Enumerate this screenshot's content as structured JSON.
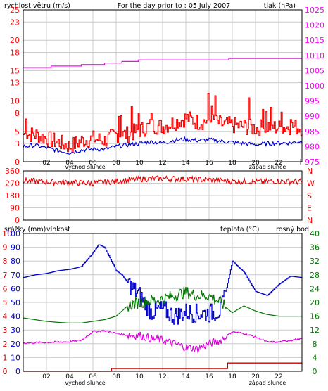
{
  "colors": {
    "wind": "#ff0000",
    "pressure": "#ff00ff",
    "speed_avg": "#0000cc",
    "direction": "#e60000",
    "humidity": "#0000cc",
    "temperature": "#007700",
    "dewpoint": "#dd00dd",
    "rain": "#cc0000",
    "grid": "#cccccc",
    "frame": "#000000"
  },
  "chart_data": [
    {
      "type": "line",
      "title": "For the day prior to : 05 July 2007",
      "ylabel": "rychlost větru (m/s)",
      "y2label": "tlak (hPa)",
      "ylim": [
        0,
        25
      ],
      "y2lim": [
        975,
        1025
      ],
      "yticks": [
        "0",
        "3",
        "5",
        "8",
        "10",
        "13",
        "15",
        "18",
        "20",
        "23",
        "25"
      ],
      "y2ticks": [
        "975",
        "980",
        "985",
        "990",
        "995",
        "1000",
        "1005",
        "1010",
        "1015",
        "1020",
        "1025"
      ],
      "xticks": [
        "02",
        "04",
        "06",
        "08",
        "10",
        "12",
        "14",
        "16",
        "18",
        "20",
        "22"
      ],
      "x_notes": {
        "sunrise": "východ slunce",
        "sunset": "západ slunce"
      },
      "grid": true,
      "series": [
        {
          "key": "wind_gust",
          "x": [
            0,
            1,
            2,
            3,
            4,
            5,
            6,
            7,
            8,
            9,
            10,
            11,
            12,
            13,
            14,
            15,
            16,
            17,
            18,
            19,
            20,
            21,
            22,
            23,
            24
          ],
          "values": [
            4.5,
            4.5,
            3.8,
            3.2,
            2.5,
            3.5,
            3.8,
            3.5,
            4.5,
            4.5,
            5.2,
            6,
            5.8,
            6.5,
            7.2,
            6.5,
            6.8,
            6.2,
            6,
            5.8,
            5.5,
            5.8,
            5.6,
            5.8,
            5.6
          ]
        },
        {
          "key": "wind_avg",
          "x": [
            0,
            1,
            2,
            3,
            4,
            5,
            6,
            7,
            8,
            9,
            10,
            11,
            12,
            13,
            14,
            15,
            16,
            17,
            18,
            19,
            20,
            21,
            22,
            23,
            24
          ],
          "values": [
            2.5,
            2.7,
            2.3,
            1.8,
            1.5,
            1.9,
            2.1,
            2,
            2.5,
            2.8,
            3,
            3.3,
            3.1,
            3.5,
            3.7,
            3.5,
            3.6,
            3.4,
            3.2,
            3,
            2.8,
            3,
            3.1,
            3.1,
            3.4
          ]
        },
        {
          "key": "pressure",
          "axis": "right",
          "x": [
            0,
            2,
            4,
            6,
            8,
            9,
            10,
            12,
            14,
            16,
            18,
            20,
            22,
            24
          ],
          "values": [
            1006,
            1006.2,
            1006.5,
            1007,
            1007.5,
            1008,
            1008.3,
            1008.5,
            1008.5,
            1008.5,
            1008.8,
            1009,
            1009,
            1009
          ]
        }
      ]
    },
    {
      "type": "line",
      "yticks": [
        "360",
        "270",
        "180",
        "90",
        "0"
      ],
      "y2ticks": [
        "N",
        "W",
        "S",
        "E",
        "N"
      ],
      "ylim": [
        0,
        360
      ],
      "grid": true,
      "series": [
        {
          "key": "wind_direction",
          "x": [
            0,
            2,
            4,
            6,
            8,
            10,
            12,
            14,
            16,
            18,
            20,
            22,
            24
          ],
          "values": [
            290,
            280,
            275,
            270,
            285,
            300,
            305,
            300,
            295,
            285,
            280,
            285,
            280
          ]
        }
      ]
    },
    {
      "type": "line",
      "labels": {
        "rain": "srážky (mm)",
        "humidity": "vlhkost",
        "temperature": "teplota (°C)",
        "dewpoint": "rosný bod"
      },
      "rain_ticks": [
        "0",
        "1",
        "2",
        "3",
        "4",
        "5",
        "6",
        "7",
        "8",
        "9",
        "10"
      ],
      "humidity_ticks": [
        "0",
        "10",
        "20",
        "30",
        "40",
        "50",
        "60",
        "70",
        "80",
        "90",
        "100"
      ],
      "temp_ticks": [
        "0",
        "4",
        "8",
        "12",
        "16",
        "20",
        "24",
        "28",
        "32",
        "36",
        "40"
      ],
      "ylim_rain": [
        0,
        10
      ],
      "ylim_humidity": [
        0,
        100
      ],
      "ylim_temp": [
        0,
        40
      ],
      "xticks": [
        "02",
        "04",
        "06",
        "08",
        "10",
        "12",
        "14",
        "16",
        "18",
        "20",
        "22"
      ],
      "x_notes": {
        "sunrise": "východ slunce",
        "sunset": "západ slunce"
      },
      "grid": true,
      "series": [
        {
          "key": "humidity",
          "x": [
            0,
            1,
            2,
            3,
            4,
            5,
            6,
            6.5,
            7,
            8,
            8.5,
            9,
            10,
            11,
            12,
            13,
            14,
            15,
            16,
            17,
            17.5,
            18,
            19,
            20,
            21,
            22,
            23,
            24
          ],
          "values": [
            68,
            70,
            71,
            73,
            74,
            76,
            86,
            92,
            90,
            73,
            70,
            64,
            55,
            43,
            45,
            40,
            43,
            42,
            42,
            44,
            60,
            80,
            72,
            58,
            55,
            63,
            69,
            68
          ]
        },
        {
          "key": "temperature",
          "axis": "temp",
          "x": [
            0,
            1,
            2,
            3,
            4,
            5,
            6,
            7,
            8,
            9,
            10,
            11,
            12,
            13,
            14,
            15,
            16,
            17,
            18,
            19,
            20,
            21,
            22,
            23,
            24
          ],
          "values": [
            15.5,
            15,
            14.5,
            14.2,
            14,
            14,
            14.5,
            15,
            16,
            19,
            20,
            20.5,
            21,
            22,
            23,
            22,
            22,
            20,
            17,
            19,
            17.5,
            16.5,
            16,
            16,
            16
          ]
        },
        {
          "key": "dewpoint",
          "axis": "temp",
          "x": [
            0,
            1,
            2,
            3,
            4,
            5,
            6,
            7,
            8,
            9,
            10,
            11,
            12,
            13,
            14,
            15,
            16,
            17,
            18,
            19,
            20,
            21,
            22,
            23,
            24
          ],
          "values": [
            8.2,
            8.3,
            8.4,
            8.5,
            8.6,
            9,
            11.5,
            11.8,
            11,
            10.5,
            10.5,
            9.5,
            9,
            8,
            7,
            6.5,
            8,
            9,
            11.5,
            11,
            10,
            8.5,
            8.5,
            9,
            9.5
          ]
        },
        {
          "key": "rain",
          "axis": "rain",
          "x": [
            0,
            7.5,
            7.6,
            17.5,
            17.6,
            24
          ],
          "values": [
            0,
            0,
            0.2,
            0.2,
            0.6,
            0.6
          ]
        }
      ]
    }
  ]
}
